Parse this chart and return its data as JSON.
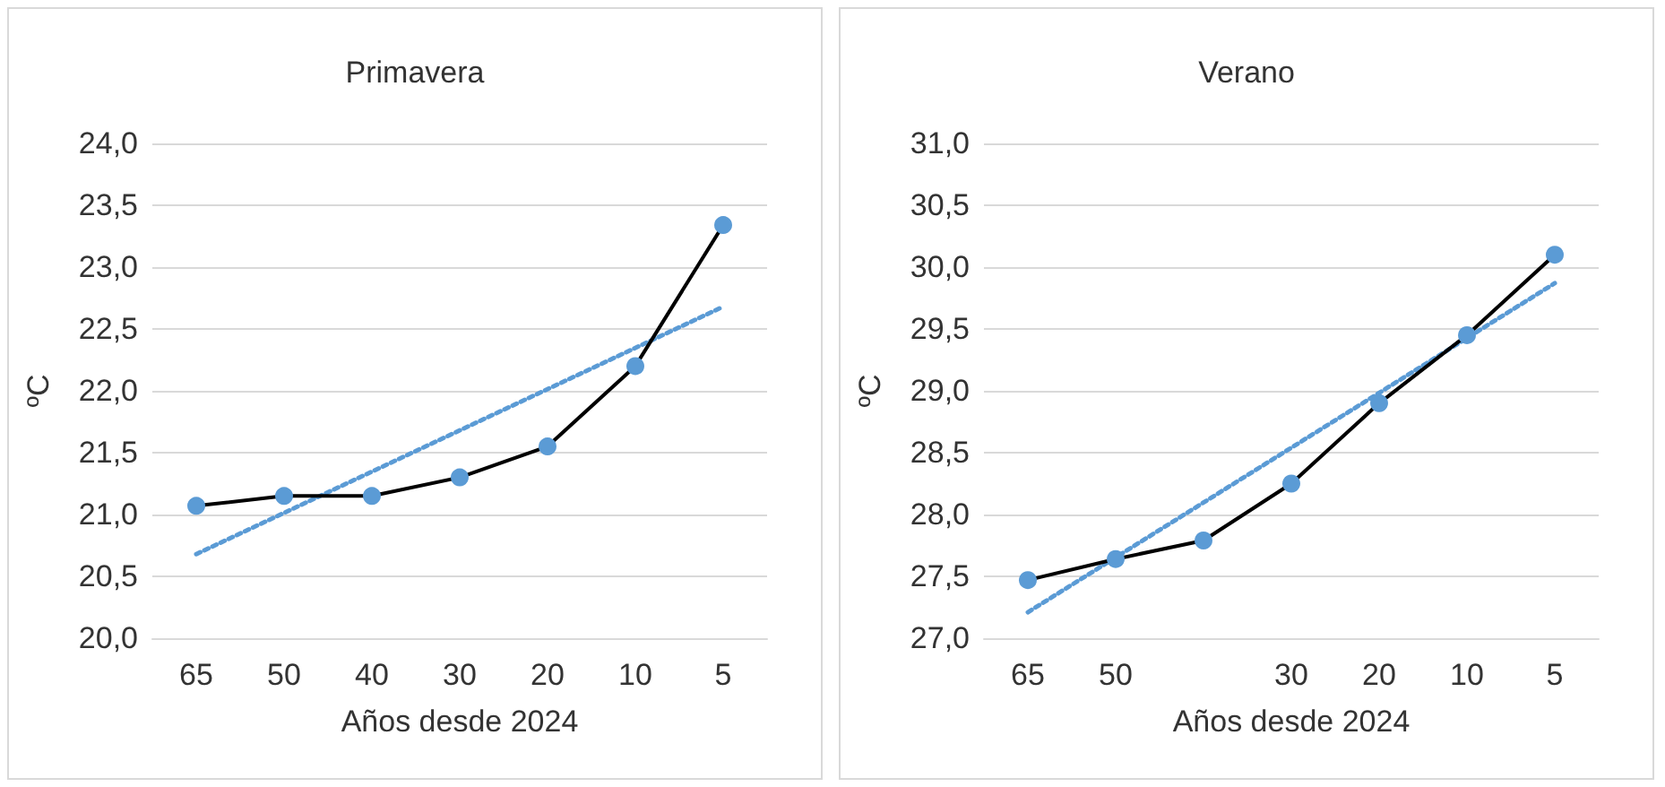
{
  "chart_data": [
    {
      "type": "line",
      "title": "Primavera",
      "xlabel": "Años desde 2024",
      "ylabel": "ºC",
      "categories": [
        "65",
        "50",
        "40",
        "30",
        "20",
        "10",
        "5"
      ],
      "ylim": [
        20,
        24
      ],
      "yticks": [
        {
          "value": 20,
          "label": "20,0"
        },
        {
          "value": 20.5,
          "label": "20,5"
        },
        {
          "value": 21,
          "label": "21,0"
        },
        {
          "value": 21.5,
          "label": "21,5"
        },
        {
          "value": 22,
          "label": "22,0"
        },
        {
          "value": 22.5,
          "label": "22,5"
        },
        {
          "value": 23,
          "label": "23,0"
        },
        {
          "value": 23.5,
          "label": "23,5"
        },
        {
          "value": 24,
          "label": "24,0"
        }
      ],
      "grid": "y",
      "series": [
        {
          "color": "#5b9bd5",
          "marker": "circle",
          "line_style": "solid",
          "values": [
            21.07,
            21.15,
            21.15,
            21.3,
            21.55,
            22.2,
            23.34
          ]
        },
        {
          "type": "line",
          "color": "#5b9bd5",
          "marker": "none",
          "line_style": "dotted",
          "values": [
            20.68,
            null,
            null,
            null,
            null,
            null,
            22.68
          ]
        }
      ]
    },
    {
      "type": "line",
      "title": "Verano",
      "xlabel": "Años desde 2024",
      "ylabel": "ºC",
      "categories": [
        "65",
        "50",
        null,
        "30",
        "20",
        "10",
        "5"
      ],
      "ylim": [
        27,
        31
      ],
      "yticks": [
        {
          "value": 27,
          "label": "27,0"
        },
        {
          "value": 27.5,
          "label": "27,5"
        },
        {
          "value": 28,
          "label": "28,0"
        },
        {
          "value": 28.5,
          "label": "28,5"
        },
        {
          "value": 29,
          "label": "29,0"
        },
        {
          "value": 29.5,
          "label": "29,5"
        },
        {
          "value": 30,
          "label": "30,0"
        },
        {
          "value": 30.5,
          "label": "30,5"
        },
        {
          "value": 31,
          "label": "31,0"
        }
      ],
      "grid": "y",
      "series": [
        {
          "color": "#5b9bd5",
          "marker": "circle",
          "line_style": "solid",
          "values": [
            27.47,
            27.64,
            27.79,
            28.25,
            28.9,
            29.45,
            30.1
          ]
        },
        {
          "type": "line",
          "color": "#5b9bd5",
          "marker": "none",
          "line_style": "dotted",
          "values": [
            27.21,
            null,
            null,
            null,
            null,
            null,
            29.87
          ]
        }
      ]
    }
  ]
}
